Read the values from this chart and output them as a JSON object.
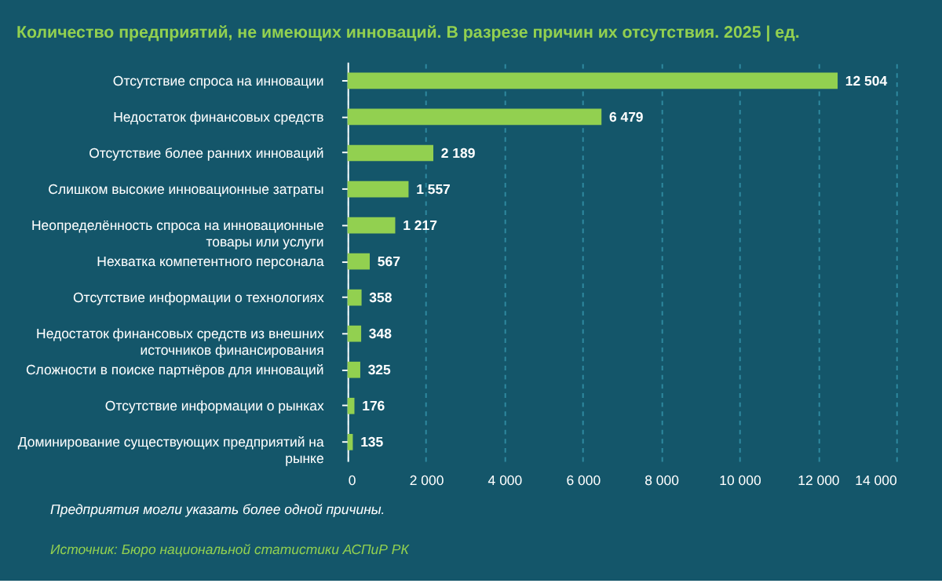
{
  "chart_data": {
    "type": "bar",
    "orientation": "horizontal",
    "title": "Количество предприятий, не имеющих инноваций. В разрезе причин их отсутствия. 2025 | ед.",
    "categories": [
      "Отсутствие спроса на инновации",
      "Недостаток финансовых средств",
      "Отсутствие более ранних инноваций",
      "Слишком высокие инновационные затраты",
      "Неопределённость спроса на инновационные товары или услуги",
      "Нехватка компетентного персонала",
      "Отсутствие информации о технологиях",
      "Недостаток финансовых средств из внешних источников финансирования",
      "Сложности в поиске партнёров для инноваций",
      "Отсутствие информации о рынках",
      "Доминирование существующих предприятий на рынке"
    ],
    "values": [
      12504,
      6479,
      2189,
      1557,
      1217,
      567,
      358,
      348,
      325,
      176,
      135
    ],
    "value_labels": [
      "12 504",
      "6 479",
      "2 189",
      "1 557",
      "1 217",
      "567",
      "358",
      "348",
      "325",
      "176",
      "135"
    ],
    "color": "#92d050",
    "xlim": [
      0,
      14000
    ],
    "xticks": [
      0,
      {
        "value": 2000,
        "label": "2 000"
      },
      {
        "value": 4000,
        "label": "4 000"
      },
      {
        "value": 6000,
        "label": "6 000"
      },
      {
        "value": 8000,
        "label": "8 000"
      },
      {
        "value": 10000,
        "label": "10 000"
      },
      {
        "value": 12000,
        "label": "12 000"
      },
      {
        "value": 14000,
        "label": "14 000"
      }
    ],
    "grid": "x",
    "annotations": [
      "Предприятия могли указать более одной причины.",
      "Источник: Бюро национальной статистики АСПиР РК"
    ]
  }
}
